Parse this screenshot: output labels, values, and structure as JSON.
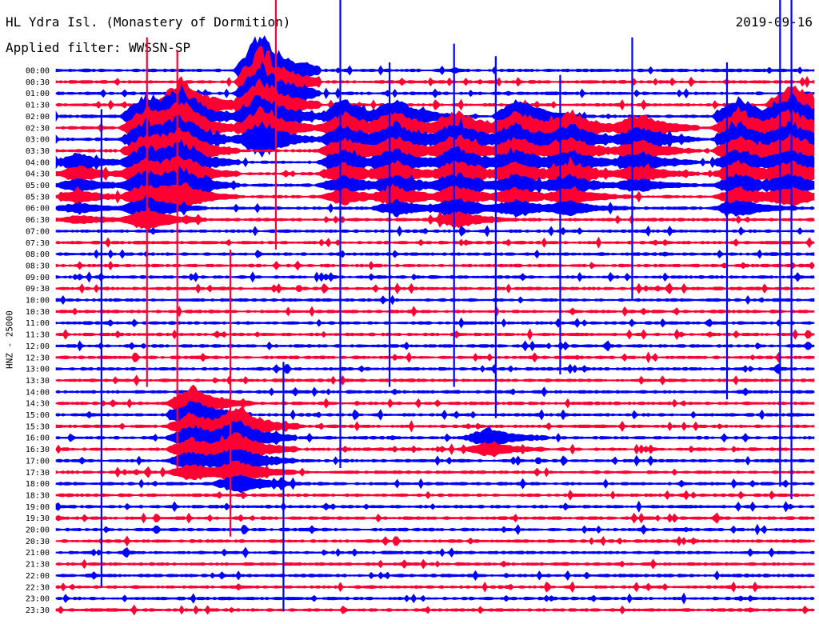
{
  "header": {
    "station": "HL Ydra Isl. (Monastery of Dormition)",
    "date": "2019-09-16",
    "filter": "Applied filter: WWSSN-SP"
  },
  "chart_data": {
    "type": "line",
    "title": "HL Ydra Isl. (Monastery of Dormition)",
    "ylabel": "HNZ - 25000",
    "categories": [
      "00:00",
      "00:30",
      "01:00",
      "01:30",
      "02:00",
      "02:30",
      "03:00",
      "03:30",
      "04:00",
      "04:30",
      "05:00",
      "05:30",
      "06:00",
      "06:30",
      "07:00",
      "07:30",
      "08:00",
      "08:30",
      "09:00",
      "09:30",
      "10:00",
      "10:30",
      "11:00",
      "11:30",
      "12:00",
      "12:30",
      "13:00",
      "13:30",
      "14:00",
      "14:30",
      "15:00",
      "15:30",
      "16:00",
      "16:30",
      "17:00",
      "17:30",
      "18:00",
      "18:30",
      "19:00",
      "19:30",
      "20:00",
      "20:30",
      "21:00",
      "21:30",
      "22:00",
      "22:30",
      "23:00",
      "23:30"
    ],
    "series": [
      {
        "color": "#0000ff"
      },
      {
        "color": "#ff0033"
      }
    ],
    "events": [
      {
        "t": 0.03,
        "row_start": 8,
        "rows": 6,
        "amp": 0.9,
        "side": "blue"
      },
      {
        "t": 0.12,
        "row_start": 4,
        "rows": 10,
        "amp": 2.5,
        "side": "red"
      },
      {
        "t": 0.165,
        "row_start": 3,
        "rows": 9,
        "amp": 2.8,
        "side": "red"
      },
      {
        "t": 0.27,
        "row_start": 0,
        "rows": 7,
        "amp": 4.0,
        "side": "red"
      },
      {
        "t": 0.38,
        "row_start": 4,
        "rows": 8,
        "amp": 1.8,
        "side": "blue"
      },
      {
        "t": 0.45,
        "row_start": 4,
        "rows": 9,
        "amp": 1.8,
        "side": "blue"
      },
      {
        "t": 0.53,
        "row_start": 5,
        "rows": 9,
        "amp": 2.0,
        "side": "blue"
      },
      {
        "t": 0.61,
        "row_start": 4,
        "rows": 9,
        "amp": 1.8,
        "side": "blue"
      },
      {
        "t": 0.68,
        "row_start": 5,
        "rows": 8,
        "amp": 1.6,
        "side": "blue"
      },
      {
        "t": 0.77,
        "row_start": 5,
        "rows": 6,
        "amp": 1.5,
        "side": "blue"
      },
      {
        "t": 0.9,
        "row_start": 4,
        "rows": 9,
        "amp": 2.0,
        "side": "blue"
      },
      {
        "t": 0.97,
        "row_start": 3,
        "rows": 9,
        "amp": 2.2,
        "side": "blue"
      },
      {
        "t": 0.18,
        "row_start": 29,
        "rows": 7,
        "amp": 1.8,
        "side": "red"
      },
      {
        "t": 0.24,
        "row_start": 31,
        "rows": 6,
        "amp": 2.0,
        "side": "blue"
      },
      {
        "t": 0.57,
        "row_start": 32,
        "rows": 2,
        "amp": 1.0,
        "side": "blue"
      }
    ],
    "spikes": [
      {
        "t": 0.06,
        "y_top": 0.175,
        "y_bot": 0.94,
        "color": "blue"
      },
      {
        "t": 0.12,
        "y_top": 0.06,
        "y_bot": 0.62,
        "color": "red"
      },
      {
        "t": 0.16,
        "y_top": 0.08,
        "y_bot": 0.76,
        "color": "red"
      },
      {
        "t": 0.29,
        "y_top": 0.0,
        "y_bot": 0.4,
        "color": "red"
      },
      {
        "t": 0.23,
        "y_top": 0.4,
        "y_bot": 0.86,
        "color": "red"
      },
      {
        "t": 0.3,
        "y_top": 0.58,
        "y_bot": 0.98,
        "color": "blue"
      },
      {
        "t": 0.375,
        "y_top": 0.0,
        "y_bot": 0.75,
        "color": "blue"
      },
      {
        "t": 0.44,
        "y_top": 0.1,
        "y_bot": 0.62,
        "color": "blue"
      },
      {
        "t": 0.525,
        "y_top": 0.07,
        "y_bot": 0.62,
        "color": "blue"
      },
      {
        "t": 0.58,
        "y_top": 0.09,
        "y_bot": 0.67,
        "color": "blue"
      },
      {
        "t": 0.665,
        "y_top": 0.12,
        "y_bot": 0.6,
        "color": "blue"
      },
      {
        "t": 0.76,
        "y_top": 0.06,
        "y_bot": 0.48,
        "color": "blue"
      },
      {
        "t": 0.885,
        "y_top": 0.1,
        "y_bot": 0.64,
        "color": "blue"
      },
      {
        "t": 0.955,
        "y_top": 0.0,
        "y_bot": 0.78,
        "color": "blue"
      },
      {
        "t": 0.97,
        "y_top": 0.0,
        "y_bot": 0.8,
        "color": "blue"
      }
    ]
  }
}
